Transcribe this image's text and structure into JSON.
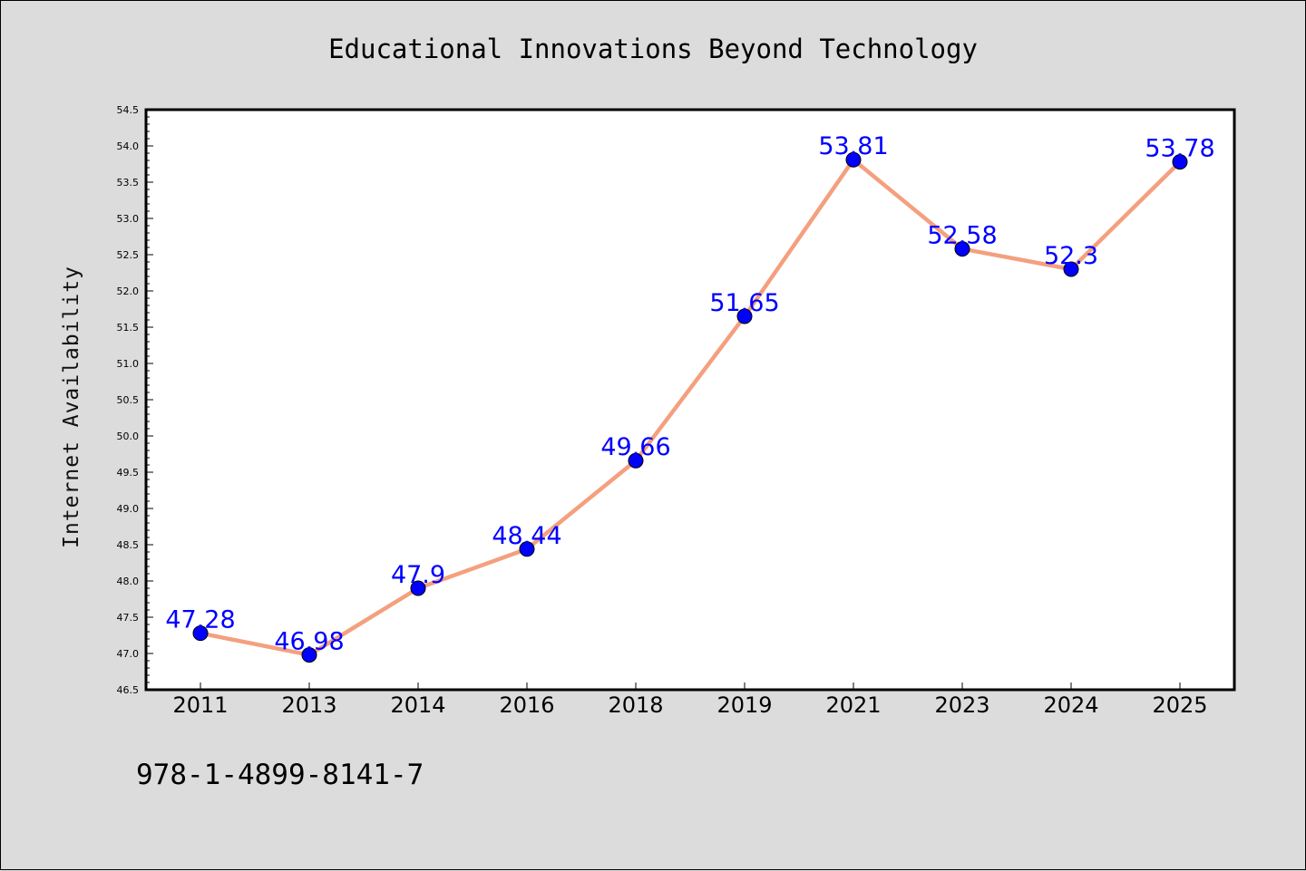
{
  "chart_data": {
    "type": "line",
    "title": "Educational Innovations Beyond Technology",
    "xlabel": "",
    "ylabel": "Internet Availability",
    "categories": [
      "2011",
      "2013",
      "2014",
      "2016",
      "2018",
      "2019",
      "2021",
      "2023",
      "2024",
      "2025"
    ],
    "values": [
      47.28,
      46.98,
      47.9,
      48.44,
      49.66,
      51.65,
      53.81,
      52.58,
      52.3,
      53.78
    ],
    "data_labels": [
      "47.28",
      "46.98",
      "47.9",
      "48.44",
      "49.66",
      "51.65",
      "53.81",
      "52.58",
      "52.3",
      "53.78"
    ],
    "ylim": [
      46.5,
      54.5
    ],
    "yticks": [
      "46.5",
      "47.0",
      "47.5",
      "48.0",
      "48.5",
      "49.0",
      "49.5",
      "50.0",
      "50.5",
      "51.0",
      "51.5",
      "52.0",
      "52.5",
      "53.0",
      "53.5",
      "54.0",
      "54.5"
    ],
    "grid": false,
    "line_color": "#f4a07e",
    "marker_color": "#0000ff",
    "label_color": "#0000ff",
    "background": "#dcdcdc",
    "plot_background": "#ffffff"
  },
  "footer": {
    "isbn": "978-1-4899-8141-7"
  }
}
